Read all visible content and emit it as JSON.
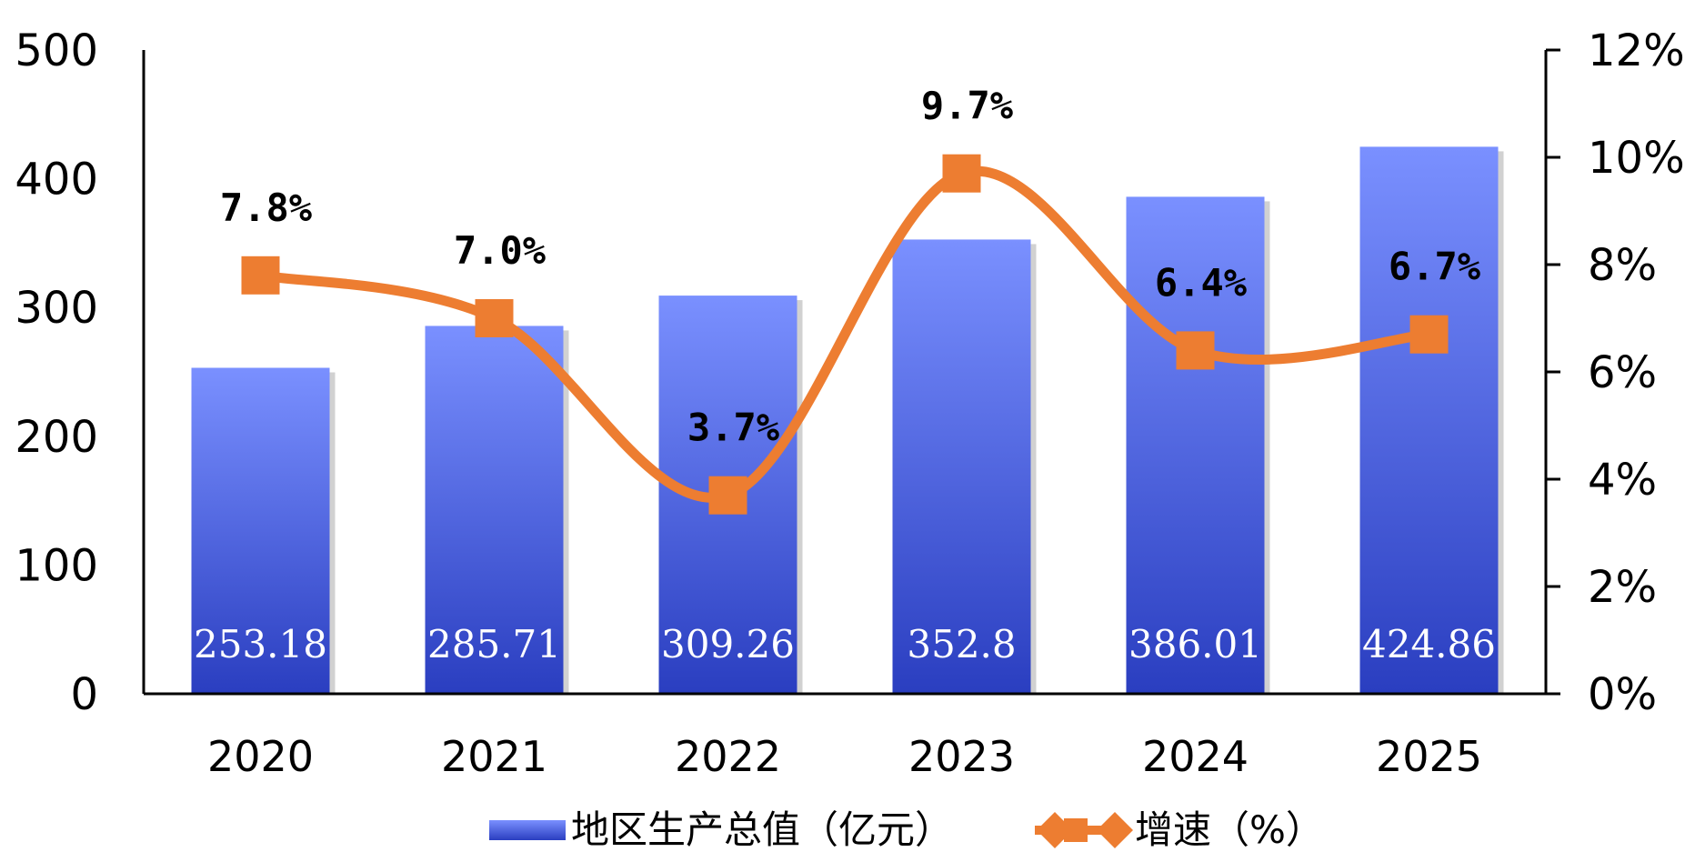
{
  "chart_data": {
    "type": "bar",
    "categories": [
      "2020",
      "2021",
      "2022",
      "2023",
      "2024",
      "2025"
    ],
    "series": [
      {
        "name": "地区生产总值（亿元）",
        "type": "bar",
        "axis": "left",
        "values": [
          253.18,
          285.71,
          309.26,
          352.8,
          386.01,
          424.86
        ],
        "labels": [
          "253.18",
          "285.71",
          "309.26",
          "352.8",
          "386.01",
          "424.86"
        ],
        "color_top": "#7a90ff",
        "color_bottom": "#2a3ec0"
      },
      {
        "name": "增速（%）",
        "type": "line",
        "axis": "right",
        "values": [
          7.8,
          7.0,
          3.7,
          9.7,
          6.4,
          6.7
        ],
        "labels": [
          "7.8%",
          "7.0%",
          "3.7%",
          "9.7%",
          "6.4%",
          "6.7%"
        ],
        "color": "#ed7d31"
      }
    ],
    "y_left": {
      "ylim": [
        0,
        500
      ],
      "ticks": [
        "0",
        "100",
        "200",
        "300",
        "400",
        "500"
      ]
    },
    "y_right": {
      "ylim": [
        0,
        12
      ],
      "ticks": [
        "0%",
        "2%",
        "4%",
        "6%",
        "8%",
        "10%",
        "12%"
      ]
    },
    "grid": false,
    "legend_position": "bottom"
  }
}
